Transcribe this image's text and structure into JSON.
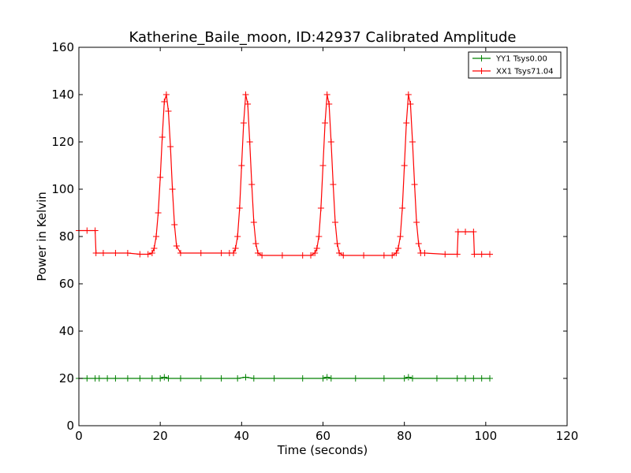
{
  "chart_data": {
    "type": "line",
    "title": "Katherine_Baile_moon, ID:42937 Calibrated Amplitude",
    "xlabel": "Time (seconds)",
    "ylabel": "Power in Kelvin",
    "xlim": [
      0,
      120
    ],
    "ylim": [
      0,
      160
    ],
    "xticks": [
      0,
      20,
      40,
      60,
      80,
      100,
      120
    ],
    "yticks": [
      0,
      20,
      40,
      60,
      80,
      100,
      120,
      140,
      160
    ],
    "grid": false,
    "legend_position": "top-right",
    "marker": "+",
    "series": [
      {
        "name": "YY1 Tsys0.00",
        "color": "#008000",
        "x": [
          0,
          2,
          4,
          5,
          7,
          9,
          12,
          15,
          18,
          20,
          21,
          22,
          25,
          30,
          35,
          39,
          41,
          43,
          48,
          55,
          60,
          61,
          62,
          68,
          75,
          80,
          81,
          82,
          88,
          93,
          95,
          97,
          99,
          101
        ],
        "y": [
          20,
          20,
          20,
          20,
          20,
          20,
          20,
          20,
          20,
          20,
          20.5,
          20,
          20,
          20,
          20,
          20,
          20.5,
          20,
          20,
          20,
          20,
          20.5,
          20,
          20,
          20,
          20,
          20.5,
          20,
          20,
          20,
          20,
          20,
          20,
          20
        ]
      },
      {
        "name": "XX1 Tsys71.04",
        "color": "#ff0000",
        "x": [
          0,
          2,
          4,
          4.2,
          6,
          9,
          12,
          15,
          17,
          18,
          18.5,
          19,
          19.5,
          20,
          20.5,
          21,
          21.5,
          22,
          22.5,
          23,
          23.5,
          24,
          25,
          30,
          35,
          37,
          38,
          38.5,
          39,
          39.5,
          40,
          40.5,
          41,
          41.5,
          42,
          42.5,
          43,
          43.5,
          44,
          45,
          50,
          55,
          57,
          58,
          58.5,
          59,
          59.5,
          60,
          60.5,
          61,
          61.5,
          62,
          62.5,
          63,
          63.5,
          64,
          65,
          70,
          75,
          77,
          78,
          78.5,
          79,
          79.5,
          80,
          80.5,
          81,
          81.5,
          82,
          82.5,
          83,
          83.5,
          84,
          85,
          90,
          93,
          93.2,
          95,
          97,
          97.2,
          99,
          101
        ],
        "y": [
          82.5,
          82.5,
          82.5,
          73,
          73,
          73,
          73,
          72.5,
          72.5,
          73,
          75,
          80,
          90,
          105,
          122,
          137,
          140,
          133,
          118,
          100,
          85,
          76,
          73,
          73,
          73,
          73,
          73,
          75,
          80,
          92,
          110,
          128,
          140,
          136,
          120,
          102,
          86,
          77,
          73,
          72,
          72,
          72,
          72,
          73,
          75,
          80,
          92,
          110,
          128,
          140,
          136,
          120,
          102,
          86,
          77,
          73,
          72,
          72,
          72,
          72,
          73,
          75,
          80,
          92,
          110,
          128,
          140,
          136,
          120,
          102,
          86,
          77,
          73,
          73,
          72.5,
          72.5,
          82,
          82,
          82,
          72.5,
          72.5,
          72.5
        ]
      }
    ]
  }
}
